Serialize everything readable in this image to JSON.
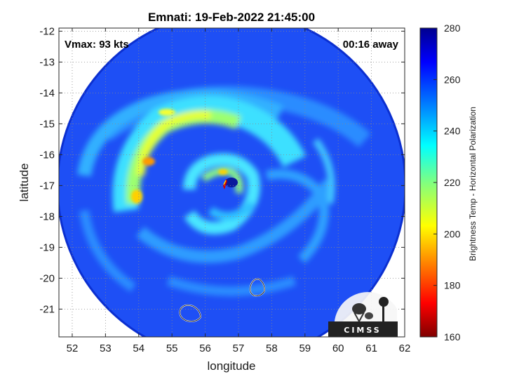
{
  "title": "Emnati: 19-Feb-2022 21:45:00",
  "vmax_text": "Vmax: 93 kts",
  "away_text": "00:16 away",
  "map": {
    "type": "satellite-microwave-swath",
    "xlabel": "longitude",
    "ylabel": "latitude",
    "xlim": [
      51.6,
      62
    ],
    "ylim": [
      -21.9,
      -11.9
    ],
    "xticks": [
      52,
      53,
      54,
      55,
      56,
      57,
      58,
      59,
      60,
      61,
      62
    ],
    "yticks": [
      -12,
      -13,
      -14,
      -15,
      -16,
      -17,
      -18,
      -19,
      -20,
      -21
    ],
    "storm_center": [
      57.0,
      -16.9
    ],
    "coastline_outlines": [
      "small island near 57.6E 20.3S",
      "island near 55.5E 21.1S"
    ]
  },
  "colorbar": {
    "label": "Brightness Temp - Horizontal Polarization",
    "min": 160,
    "max": 280,
    "ticks": [
      160,
      180,
      200,
      220,
      240,
      260,
      280
    ],
    "colors": [
      "#7f0000",
      "#ff0000",
      "#ff8000",
      "#ffff00",
      "#80ff80",
      "#00ffff",
      "#0080ff",
      "#0000ff",
      "#00008f"
    ]
  },
  "logo": {
    "text": "CIMSS"
  }
}
